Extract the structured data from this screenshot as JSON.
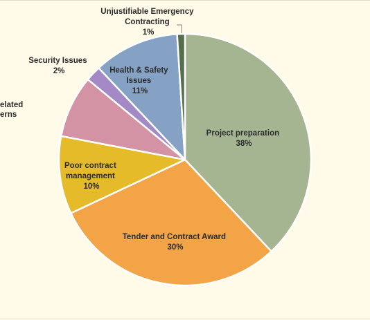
{
  "chart_data": {
    "type": "pie",
    "title": "",
    "slices": [
      {
        "label": "Project preparation",
        "value": 38,
        "value_label": "38%",
        "color": "#a5b592",
        "label_color": "#2b2b2b"
      },
      {
        "label": "Tender and Contract Award",
        "value": 30,
        "value_label": "30%",
        "color": "#f2a447",
        "label_color": "#2b2b2b"
      },
      {
        "label": "Poor contract management",
        "value": 10,
        "value_label": "10%",
        "color": "#e5bb2a",
        "label_color": "#2b2b2b"
      },
      {
        "label": "...elated ...erns",
        "value": 8,
        "value_label": "",
        "color": "#d393a5",
        "label_color": "#2b2b2b"
      },
      {
        "label": "Security Issues",
        "value": 2,
        "value_label": "2%",
        "color": "#a389c6",
        "label_color": "#2b2b2b"
      },
      {
        "label": "Health & Safety Issues",
        "value": 11,
        "value_label": "11%",
        "color": "#85a1c4",
        "label_color": "#2b2b2b"
      },
      {
        "label": "Unjustifiable Emergency Contracting",
        "value": 1,
        "value_label": "1%",
        "color": "#54704a",
        "label_color": "#2b2b2b"
      }
    ]
  },
  "labels": {
    "project": [
      "Project preparation",
      "38%"
    ],
    "tender": [
      "Tender and Contract Award",
      "30%"
    ],
    "poor": [
      "Poor contract",
      "management",
      "10%"
    ],
    "related": [
      "elated",
      "erns"
    ],
    "security": [
      "Security Issues",
      "2%"
    ],
    "health": [
      "Health & Safety",
      "Issues",
      "11%"
    ],
    "emergency": [
      "Unjustifiable Emergency",
      "Contracting",
      "1%"
    ]
  }
}
